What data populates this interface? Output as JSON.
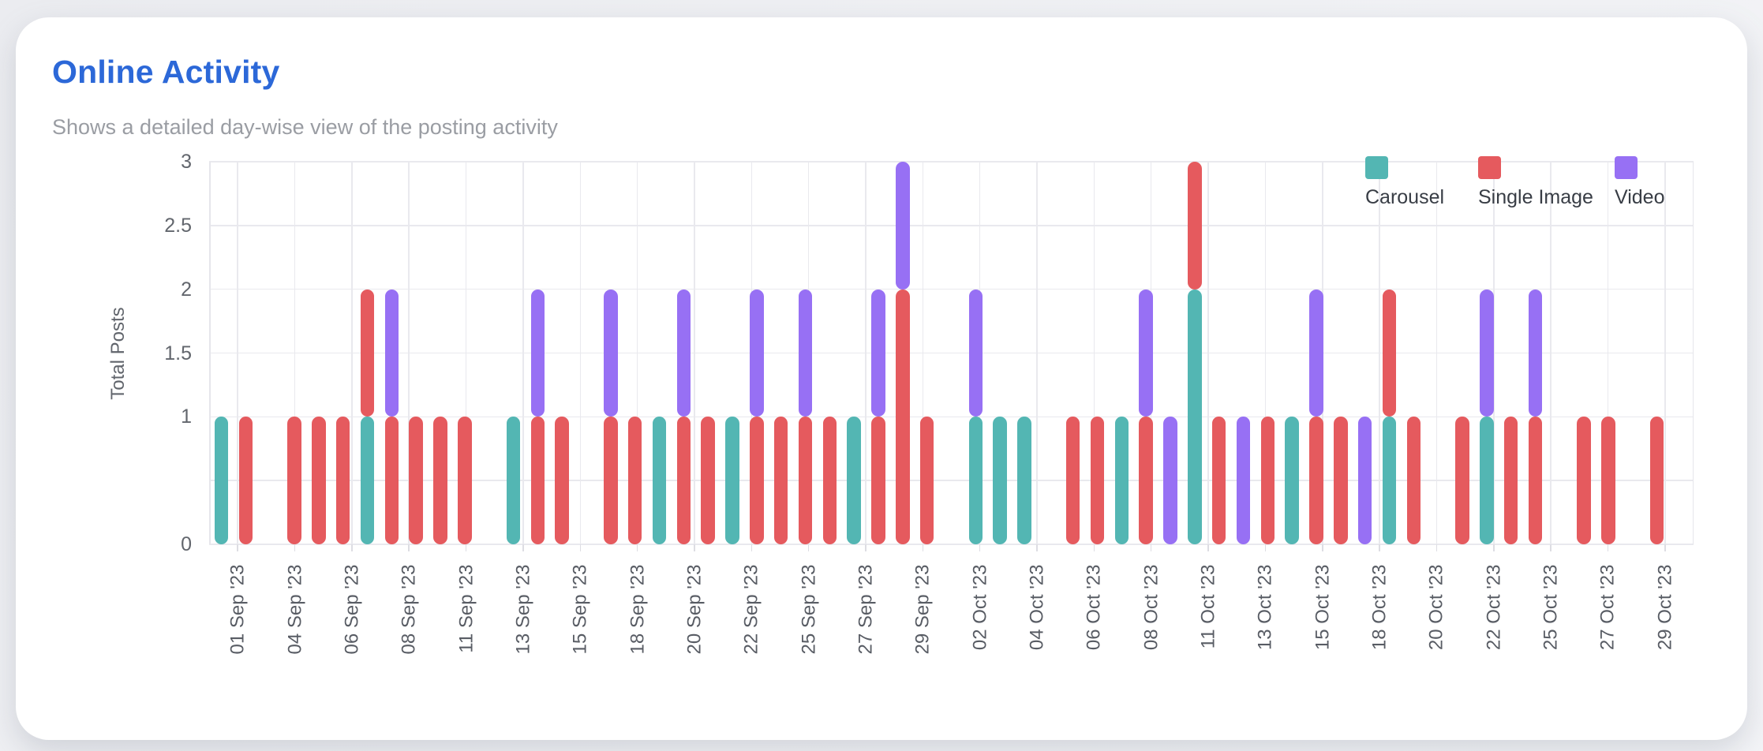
{
  "page": {
    "background": "#eff0f4",
    "card_background": "#ffffff"
  },
  "header": {
    "title": "Online Activity",
    "title_color": "#2c68d8",
    "subtitle": "Shows a detailed day-wise view of the posting activity",
    "subtitle_color": "#9a9da3"
  },
  "chart_data": {
    "type": "bar",
    "stacked": true,
    "title": "Online Activity",
    "xlabel": "",
    "ylabel": "Total Posts",
    "ylim": [
      0,
      3
    ],
    "grid": true,
    "legend_position": "top-right",
    "colors": {
      "grid": "#e9e9ee",
      "axis_text": "#585c64",
      "legend_text": "#383d45"
    },
    "y_ticks": [
      {
        "value": 0,
        "label": "0"
      },
      {
        "value": 0.5,
        "label": ""
      },
      {
        "value": 1,
        "label": "1"
      },
      {
        "value": 1.5,
        "label": "1.5"
      },
      {
        "value": 2,
        "label": "2"
      },
      {
        "value": 2.5,
        "label": "2.5"
      },
      {
        "value": 3,
        "label": "3"
      }
    ],
    "x_domain_days": 61,
    "x_start": "01 Sep '23",
    "x_end": "31 Oct '23",
    "xtick_labels": [
      "01 Sep '23",
      "04 Sep '23",
      "06 Sep '23",
      "08 Sep '23",
      "11 Sep '23",
      "13 Sep '23",
      "15 Sep '23",
      "18 Sep '23",
      "20 Sep '23",
      "22 Sep '23",
      "25 Sep '23",
      "27 Sep '23",
      "29 Sep '23",
      "02 Oct '23",
      "04 Oct '23",
      "06 Oct '23",
      "08 Oct '23",
      "11 Oct '23",
      "13 Oct '23",
      "15 Oct '23",
      "18 Oct '23",
      "20 Oct '23",
      "22 Oct '23",
      "25 Oct '23",
      "27 Oct '23",
      "29 Oct '23"
    ],
    "series": [
      {
        "key": "carousel",
        "name": "Carousel",
        "color": "#53b6b3"
      },
      {
        "key": "single_image",
        "name": "Single Image",
        "color": "#e55a5e"
      },
      {
        "key": "video",
        "name": "Video",
        "color": "#9770f4"
      }
    ],
    "bars": [
      {
        "day": 0,
        "date": "01 Sep '23",
        "carousel": 1,
        "single_image": 0,
        "video": 0
      },
      {
        "day": 1,
        "date": "02 Sep '23",
        "carousel": 0,
        "single_image": 1,
        "video": 0
      },
      {
        "day": 3,
        "date": "04 Sep '23",
        "carousel": 0,
        "single_image": 1,
        "video": 0
      },
      {
        "day": 4,
        "date": "05 Sep '23",
        "carousel": 0,
        "single_image": 1,
        "video": 0
      },
      {
        "day": 5,
        "date": "06 Sep '23",
        "carousel": 0,
        "single_image": 1,
        "video": 0
      },
      {
        "day": 6,
        "date": "07 Sep '23",
        "carousel": 1,
        "single_image": 1,
        "video": 0
      },
      {
        "day": 7,
        "date": "08 Sep '23",
        "carousel": 0,
        "single_image": 1,
        "video": 1
      },
      {
        "day": 8,
        "date": "09 Sep '23",
        "carousel": 0,
        "single_image": 1,
        "video": 0
      },
      {
        "day": 9,
        "date": "10 Sep '23",
        "carousel": 0,
        "single_image": 1,
        "video": 0
      },
      {
        "day": 10,
        "date": "11 Sep '23",
        "carousel": 0,
        "single_image": 1,
        "video": 0
      },
      {
        "day": 12,
        "date": "13 Sep '23",
        "carousel": 1,
        "single_image": 0,
        "video": 0
      },
      {
        "day": 13,
        "date": "14 Sep '23",
        "carousel": 0,
        "single_image": 1,
        "video": 1
      },
      {
        "day": 14,
        "date": "15 Sep '23",
        "carousel": 0,
        "single_image": 1,
        "video": 0
      },
      {
        "day": 16,
        "date": "17 Sep '23",
        "carousel": 0,
        "single_image": 1,
        "video": 1
      },
      {
        "day": 17,
        "date": "18 Sep '23",
        "carousel": 0,
        "single_image": 1,
        "video": 0
      },
      {
        "day": 18,
        "date": "19 Sep '23",
        "carousel": 1,
        "single_image": 0,
        "video": 0
      },
      {
        "day": 19,
        "date": "20 Sep '23",
        "carousel": 0,
        "single_image": 1,
        "video": 1
      },
      {
        "day": 20,
        "date": "21 Sep '23",
        "carousel": 0,
        "single_image": 1,
        "video": 0
      },
      {
        "day": 21,
        "date": "22 Sep '23",
        "carousel": 1,
        "single_image": 0,
        "video": 0
      },
      {
        "day": 22,
        "date": "23 Sep '23",
        "carousel": 0,
        "single_image": 1,
        "video": 1
      },
      {
        "day": 23,
        "date": "24 Sep '23",
        "carousel": 0,
        "single_image": 1,
        "video": 0
      },
      {
        "day": 24,
        "date": "25 Sep '23",
        "carousel": 0,
        "single_image": 1,
        "video": 1
      },
      {
        "day": 25,
        "date": "26 Sep '23",
        "carousel": 0,
        "single_image": 1,
        "video": 0
      },
      {
        "day": 26,
        "date": "27 Sep '23",
        "carousel": 1,
        "single_image": 0,
        "video": 0
      },
      {
        "day": 27,
        "date": "28 Sep '23",
        "carousel": 0,
        "single_image": 1,
        "video": 1
      },
      {
        "day": 28,
        "date": "29 Sep '23",
        "carousel": 0,
        "single_image": 2,
        "video": 1
      },
      {
        "day": 29,
        "date": "30 Sep '23",
        "carousel": 0,
        "single_image": 1,
        "video": 0
      },
      {
        "day": 31,
        "date": "02 Oct '23",
        "carousel": 1,
        "single_image": 0,
        "video": 1
      },
      {
        "day": 32,
        "date": "03 Oct '23",
        "carousel": 1,
        "single_image": 0,
        "video": 0
      },
      {
        "day": 33,
        "date": "04 Oct '23",
        "carousel": 1,
        "single_image": 0,
        "video": 0
      },
      {
        "day": 35,
        "date": "06 Oct '23",
        "carousel": 0,
        "single_image": 1,
        "video": 0
      },
      {
        "day": 36,
        "date": "07 Oct '23",
        "carousel": 0,
        "single_image": 1,
        "video": 0
      },
      {
        "day": 37,
        "date": "08 Oct '23",
        "carousel": 1,
        "single_image": 0,
        "video": 0
      },
      {
        "day": 38,
        "date": "09 Oct '23",
        "carousel": 0,
        "single_image": 1,
        "video": 1
      },
      {
        "day": 39,
        "date": "10 Oct '23",
        "carousel": 0,
        "single_image": 0,
        "video": 1
      },
      {
        "day": 40,
        "date": "11 Oct '23",
        "carousel": 2,
        "single_image": 1,
        "video": 0
      },
      {
        "day": 41,
        "date": "12 Oct '23",
        "carousel": 0,
        "single_image": 1,
        "video": 0
      },
      {
        "day": 42,
        "date": "13 Oct '23",
        "carousel": 0,
        "single_image": 0,
        "video": 1
      },
      {
        "day": 43,
        "date": "14 Oct '23",
        "carousel": 0,
        "single_image": 1,
        "video": 0
      },
      {
        "day": 44,
        "date": "15 Oct '23",
        "carousel": 1,
        "single_image": 0,
        "video": 0
      },
      {
        "day": 45,
        "date": "16 Oct '23",
        "carousel": 0,
        "single_image": 1,
        "video": 1
      },
      {
        "day": 46,
        "date": "17 Oct '23",
        "carousel": 0,
        "single_image": 1,
        "video": 0
      },
      {
        "day": 47,
        "date": "18 Oct '23",
        "carousel": 0,
        "single_image": 0,
        "video": 1
      },
      {
        "day": 48,
        "date": "19 Oct '23",
        "carousel": 1,
        "single_image": 1,
        "video": 0
      },
      {
        "day": 49,
        "date": "20 Oct '23",
        "carousel": 0,
        "single_image": 1,
        "video": 0
      },
      {
        "day": 51,
        "date": "22 Oct '23",
        "carousel": 0,
        "single_image": 1,
        "video": 0
      },
      {
        "day": 52,
        "date": "23 Oct '23",
        "carousel": 1,
        "single_image": 0,
        "video": 1
      },
      {
        "day": 53,
        "date": "24 Oct '23",
        "carousel": 0,
        "single_image": 1,
        "video": 0
      },
      {
        "day": 54,
        "date": "25 Oct '23",
        "carousel": 0,
        "single_image": 1,
        "video": 1
      },
      {
        "day": 56,
        "date": "27 Oct '23",
        "carousel": 0,
        "single_image": 1,
        "video": 0
      },
      {
        "day": 57,
        "date": "28 Oct '23",
        "carousel": 0,
        "single_image": 1,
        "video": 0
      },
      {
        "day": 59,
        "date": "30 Oct '23",
        "carousel": 0,
        "single_image": 1,
        "video": 0
      }
    ]
  }
}
